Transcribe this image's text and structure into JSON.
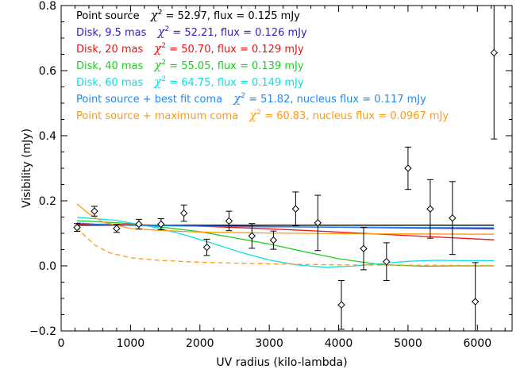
{
  "chart_data": {
    "type": "scatter",
    "title": "",
    "xlabel": "UV radius (kilo-lambda)",
    "ylabel": "Visibility (mJy)",
    "xlim": [
      0,
      6500
    ],
    "ylim": [
      -0.2,
      0.8
    ],
    "xticks": [
      0,
      1000,
      2000,
      3000,
      4000,
      5000,
      6000
    ],
    "yticks": [
      -0.2,
      0.0,
      0.2,
      0.4,
      0.6,
      0.8
    ],
    "ytick_labels": [
      "−0.2",
      "0.0",
      "0.2",
      "0.4",
      "0.6",
      "0.8"
    ],
    "legend_position": "top-left",
    "observations": {
      "x": [
        230,
        480,
        800,
        1120,
        1440,
        1770,
        2100,
        2420,
        2750,
        3060,
        3380,
        3700,
        4040,
        4360,
        4690,
        5000,
        5320,
        5640,
        5970,
        6240
      ],
      "y": [
        0.118,
        0.168,
        0.115,
        0.128,
        0.128,
        0.162,
        0.057,
        0.138,
        0.092,
        0.079,
        0.175,
        0.132,
        -0.12,
        0.053,
        0.013,
        0.3,
        0.175,
        0.147,
        -0.11,
        0.655
      ],
      "err": [
        0.012,
        0.015,
        0.012,
        0.015,
        0.017,
        0.025,
        0.025,
        0.03,
        0.038,
        0.028,
        0.052,
        0.085,
        0.075,
        0.065,
        0.058,
        0.065,
        0.09,
        0.112,
        0.12,
        0.265
      ]
    },
    "series": [
      {
        "name": "Point source",
        "chi2": "52.97",
        "extra": "flux = 0.125 mJy",
        "color": "#000000",
        "dash": false,
        "x": [
          230,
          6240
        ],
        "y": [
          0.125,
          0.125
        ]
      },
      {
        "name": "Disk, 9.5 mas",
        "chi2": "52.21",
        "extra": "flux = 0.126 mJy",
        "color": "#3322bb",
        "dash": false,
        "x": [
          230,
          6240
        ],
        "y": [
          0.126,
          0.114
        ]
      },
      {
        "name": "Disk, 20 mas",
        "chi2": "50.70",
        "extra": "flux = 0.129 mJy",
        "color": "#ee1111",
        "dash": false,
        "x": [
          230,
          1000,
          2000,
          3000,
          4000,
          5000,
          6240
        ],
        "y": [
          0.129,
          0.127,
          0.122,
          0.114,
          0.104,
          0.093,
          0.08
        ]
      },
      {
        "name": "Disk, 40 mas",
        "chi2": "55.05",
        "extra": "flux = 0.139 mJy",
        "color": "#22cc22",
        "dash": false,
        "x": [
          230,
          1000,
          2000,
          3000,
          3500,
          4000,
          4600,
          5200,
          5700,
          6240
        ],
        "y": [
          0.139,
          0.13,
          0.105,
          0.067,
          0.044,
          0.022,
          0.004,
          -0.001,
          0.0,
          0.0
        ]
      },
      {
        "name": "Disk, 60 mas",
        "chi2": "64.75",
        "extra": "flux = 0.149 mJy",
        "color": "#11dddd",
        "dash": false,
        "x": [
          230,
          800,
          1400,
          1800,
          2200,
          2600,
          3000,
          3400,
          3800,
          4200,
          4600,
          5000,
          5400,
          5800,
          6240
        ],
        "y": [
          0.149,
          0.14,
          0.116,
          0.094,
          0.068,
          0.041,
          0.018,
          0.003,
          -0.004,
          -0.001,
          0.007,
          0.014,
          0.017,
          0.016,
          0.016
        ]
      },
      {
        "name": "Point source + best fit coma",
        "chi2": "51.82",
        "extra": "nucleus flux = 0.117 mJy",
        "color": "#2288ee",
        "dash": false,
        "x": [
          230,
          500,
          1000,
          2000,
          3000,
          4000,
          5000,
          6240
        ],
        "y": [
          0.132,
          0.128,
          0.125,
          0.122,
          0.12,
          0.119,
          0.118,
          0.117
        ]
      },
      {
        "name": "Point source + maximum coma",
        "chi2": "60.83",
        "extra": "nucleus flux = 0.0967 mJy",
        "color": "#ff9911",
        "dash": false,
        "x": [
          230,
          400,
          600,
          1000,
          1500,
          2000,
          3000,
          4000,
          5000,
          6240
        ],
        "y": [
          0.19,
          0.16,
          0.135,
          0.115,
          0.108,
          0.104,
          0.101,
          0.099,
          0.098,
          0.097
        ]
      },
      {
        "name": "",
        "chi2": "",
        "extra": "",
        "color": "#ff9911",
        "dash": true,
        "x": [
          230,
          350,
          500,
          700,
          1000,
          1400,
          2000,
          3000,
          4000,
          5000,
          6240
        ],
        "y": [
          0.118,
          0.09,
          0.062,
          0.04,
          0.025,
          0.017,
          0.011,
          0.006,
          0.003,
          0.002,
          0.001
        ]
      }
    ]
  }
}
